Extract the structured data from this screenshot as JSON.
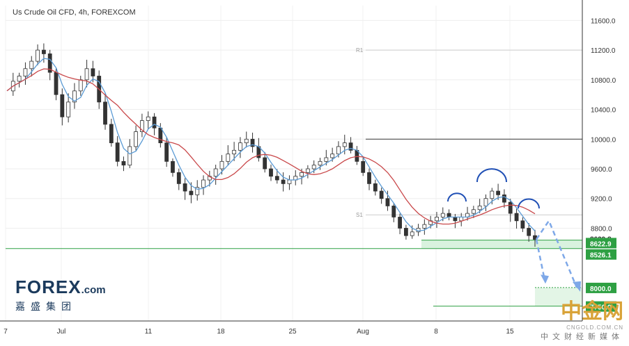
{
  "title": "Us Crude Oil CFD, 4h, FOREXCOM",
  "logo": {
    "brand": "FOREX",
    "domain": ".com",
    "chinese": "嘉盛集团"
  },
  "watermark": {
    "text": "中金网",
    "url": "CNGOLD.COM.CN",
    "sub": "中文财经新媒体"
  },
  "colors": {
    "up": "#26a69a",
    "down": "#333333",
    "ma_fast": "#5b9bd5",
    "ma_slow": "#c9484a",
    "support": "#2ea043",
    "arrow": "#7ea8e8",
    "arc": "#1f4fb5",
    "price_tag_dark": "#333333",
    "price_tag_green": "#2ea043"
  },
  "chart_data": {
    "type": "candlestick",
    "instrument": "Us Crude Oil CFD",
    "timeframe": "4h",
    "x_ticks": [
      "7",
      "Jul",
      "11",
      "18",
      "25",
      "Aug",
      "8",
      "15"
    ],
    "y_ticks": [
      11600,
      11200,
      10800,
      10400,
      10000,
      9600,
      9200,
      8800
    ],
    "ylim": [
      7550,
      11800
    ],
    "close_series": [
      10650,
      10780,
      10850,
      10950,
      11050,
      11200,
      11150,
      10900,
      10600,
      10300,
      10500,
      10650,
      10800,
      10950,
      10850,
      10500,
      10200,
      9950,
      9700,
      9650,
      9900,
      10100,
      10250,
      10300,
      10150,
      9950,
      9700,
      9550,
      9400,
      9300,
      9250,
      9350,
      9450,
      9500,
      9600,
      9700,
      9800,
      9850,
      9950,
      10000,
      9900,
      9750,
      9600,
      9500,
      9450,
      9400,
      9450,
      9500,
      9550,
      9600,
      9650,
      9700,
      9750,
      9800,
      9900,
      9950,
      9850,
      9700,
      9550,
      9400,
      9300,
      9200,
      9100,
      8950,
      8800,
      8700,
      8750,
      8800,
      8850,
      8900,
      8950,
      9000,
      8950,
      8900,
      8950,
      9000,
      9050,
      9100,
      9200,
      9300,
      9250,
      9150,
      9000,
      8900,
      8800,
      8700,
      8650
    ],
    "levels": [
      {
        "name": "R1",
        "value": 11200
      },
      {
        "name": "",
        "value": 10000
      },
      {
        "name": "S1",
        "value": 8980
      }
    ],
    "support_zone": [
      8526.1,
      8639.8
    ],
    "target_zone": [
      7750.0,
      8000.0
    ],
    "price_labels": [
      "8639.8",
      "8622.9",
      "8526.1",
      "8000.0",
      "7750.0"
    ],
    "pattern": "head and shoulders",
    "projected_path": [
      8900,
      8000,
      7950
    ]
  }
}
